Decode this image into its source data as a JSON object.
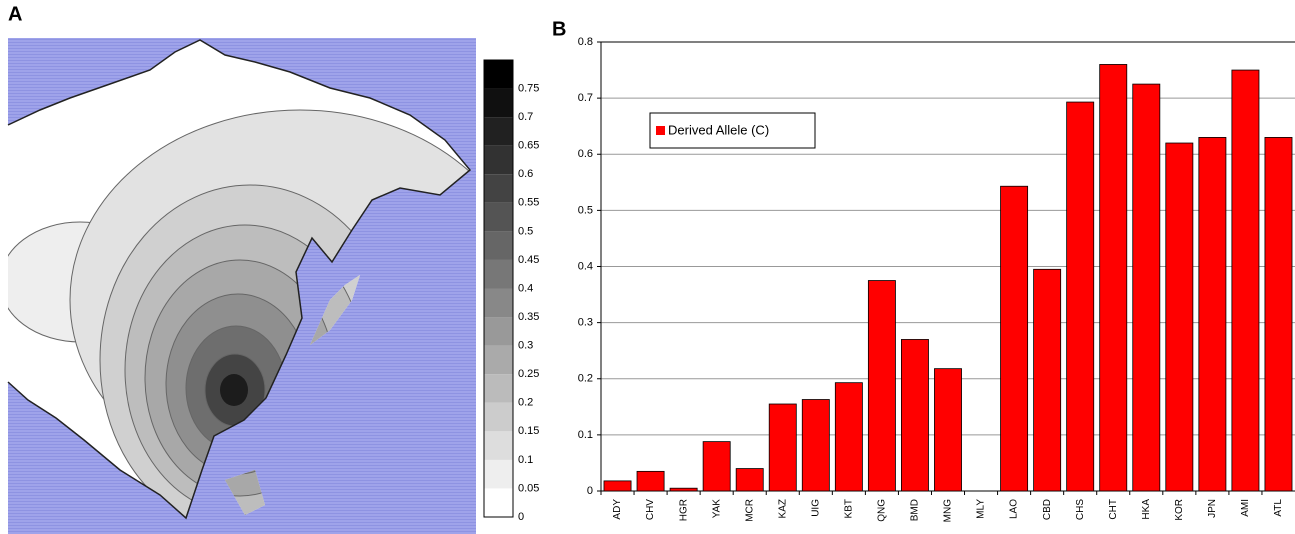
{
  "chart_data": [
    {
      "type": "map",
      "title": "A",
      "clim": [
        0,
        0.8
      ],
      "cticks": [
        0,
        0.05,
        0.1,
        0.15,
        0.2,
        0.25,
        0.3,
        0.35,
        0.4,
        0.45,
        0.5,
        0.55,
        0.6,
        0.65,
        0.7,
        0.75
      ]
    },
    {
      "type": "bar",
      "title": "B",
      "categories": [
        "ADY",
        "CHV",
        "HGR",
        "YAK",
        "MCR",
        "KAZ",
        "UIG",
        "KBT",
        "QNG",
        "BMD",
        "MNG",
        "MLY",
        "LAO",
        "CBD",
        "CHS",
        "CHT",
        "HKA",
        "KOR",
        "JPN",
        "AMI",
        "ATL"
      ],
      "series": [
        {
          "name": "Derived Allele (C)",
          "color": "#ff0000",
          "values": [
            0.018,
            0.035,
            0.005,
            0.088,
            0.04,
            0.155,
            0.163,
            0.193,
            0.375,
            0.27,
            0.218,
            0,
            0.543,
            0.395,
            0.693,
            0.76,
            0.725,
            0.62,
            0.63,
            0.75,
            0.63
          ]
        }
      ],
      "ylim": [
        0,
        0.8
      ],
      "yticks": [
        0,
        0.1,
        0.2,
        0.3,
        0.4,
        0.5,
        0.6,
        0.7,
        0.8
      ],
      "grid": true,
      "legend": "top-left"
    }
  ]
}
